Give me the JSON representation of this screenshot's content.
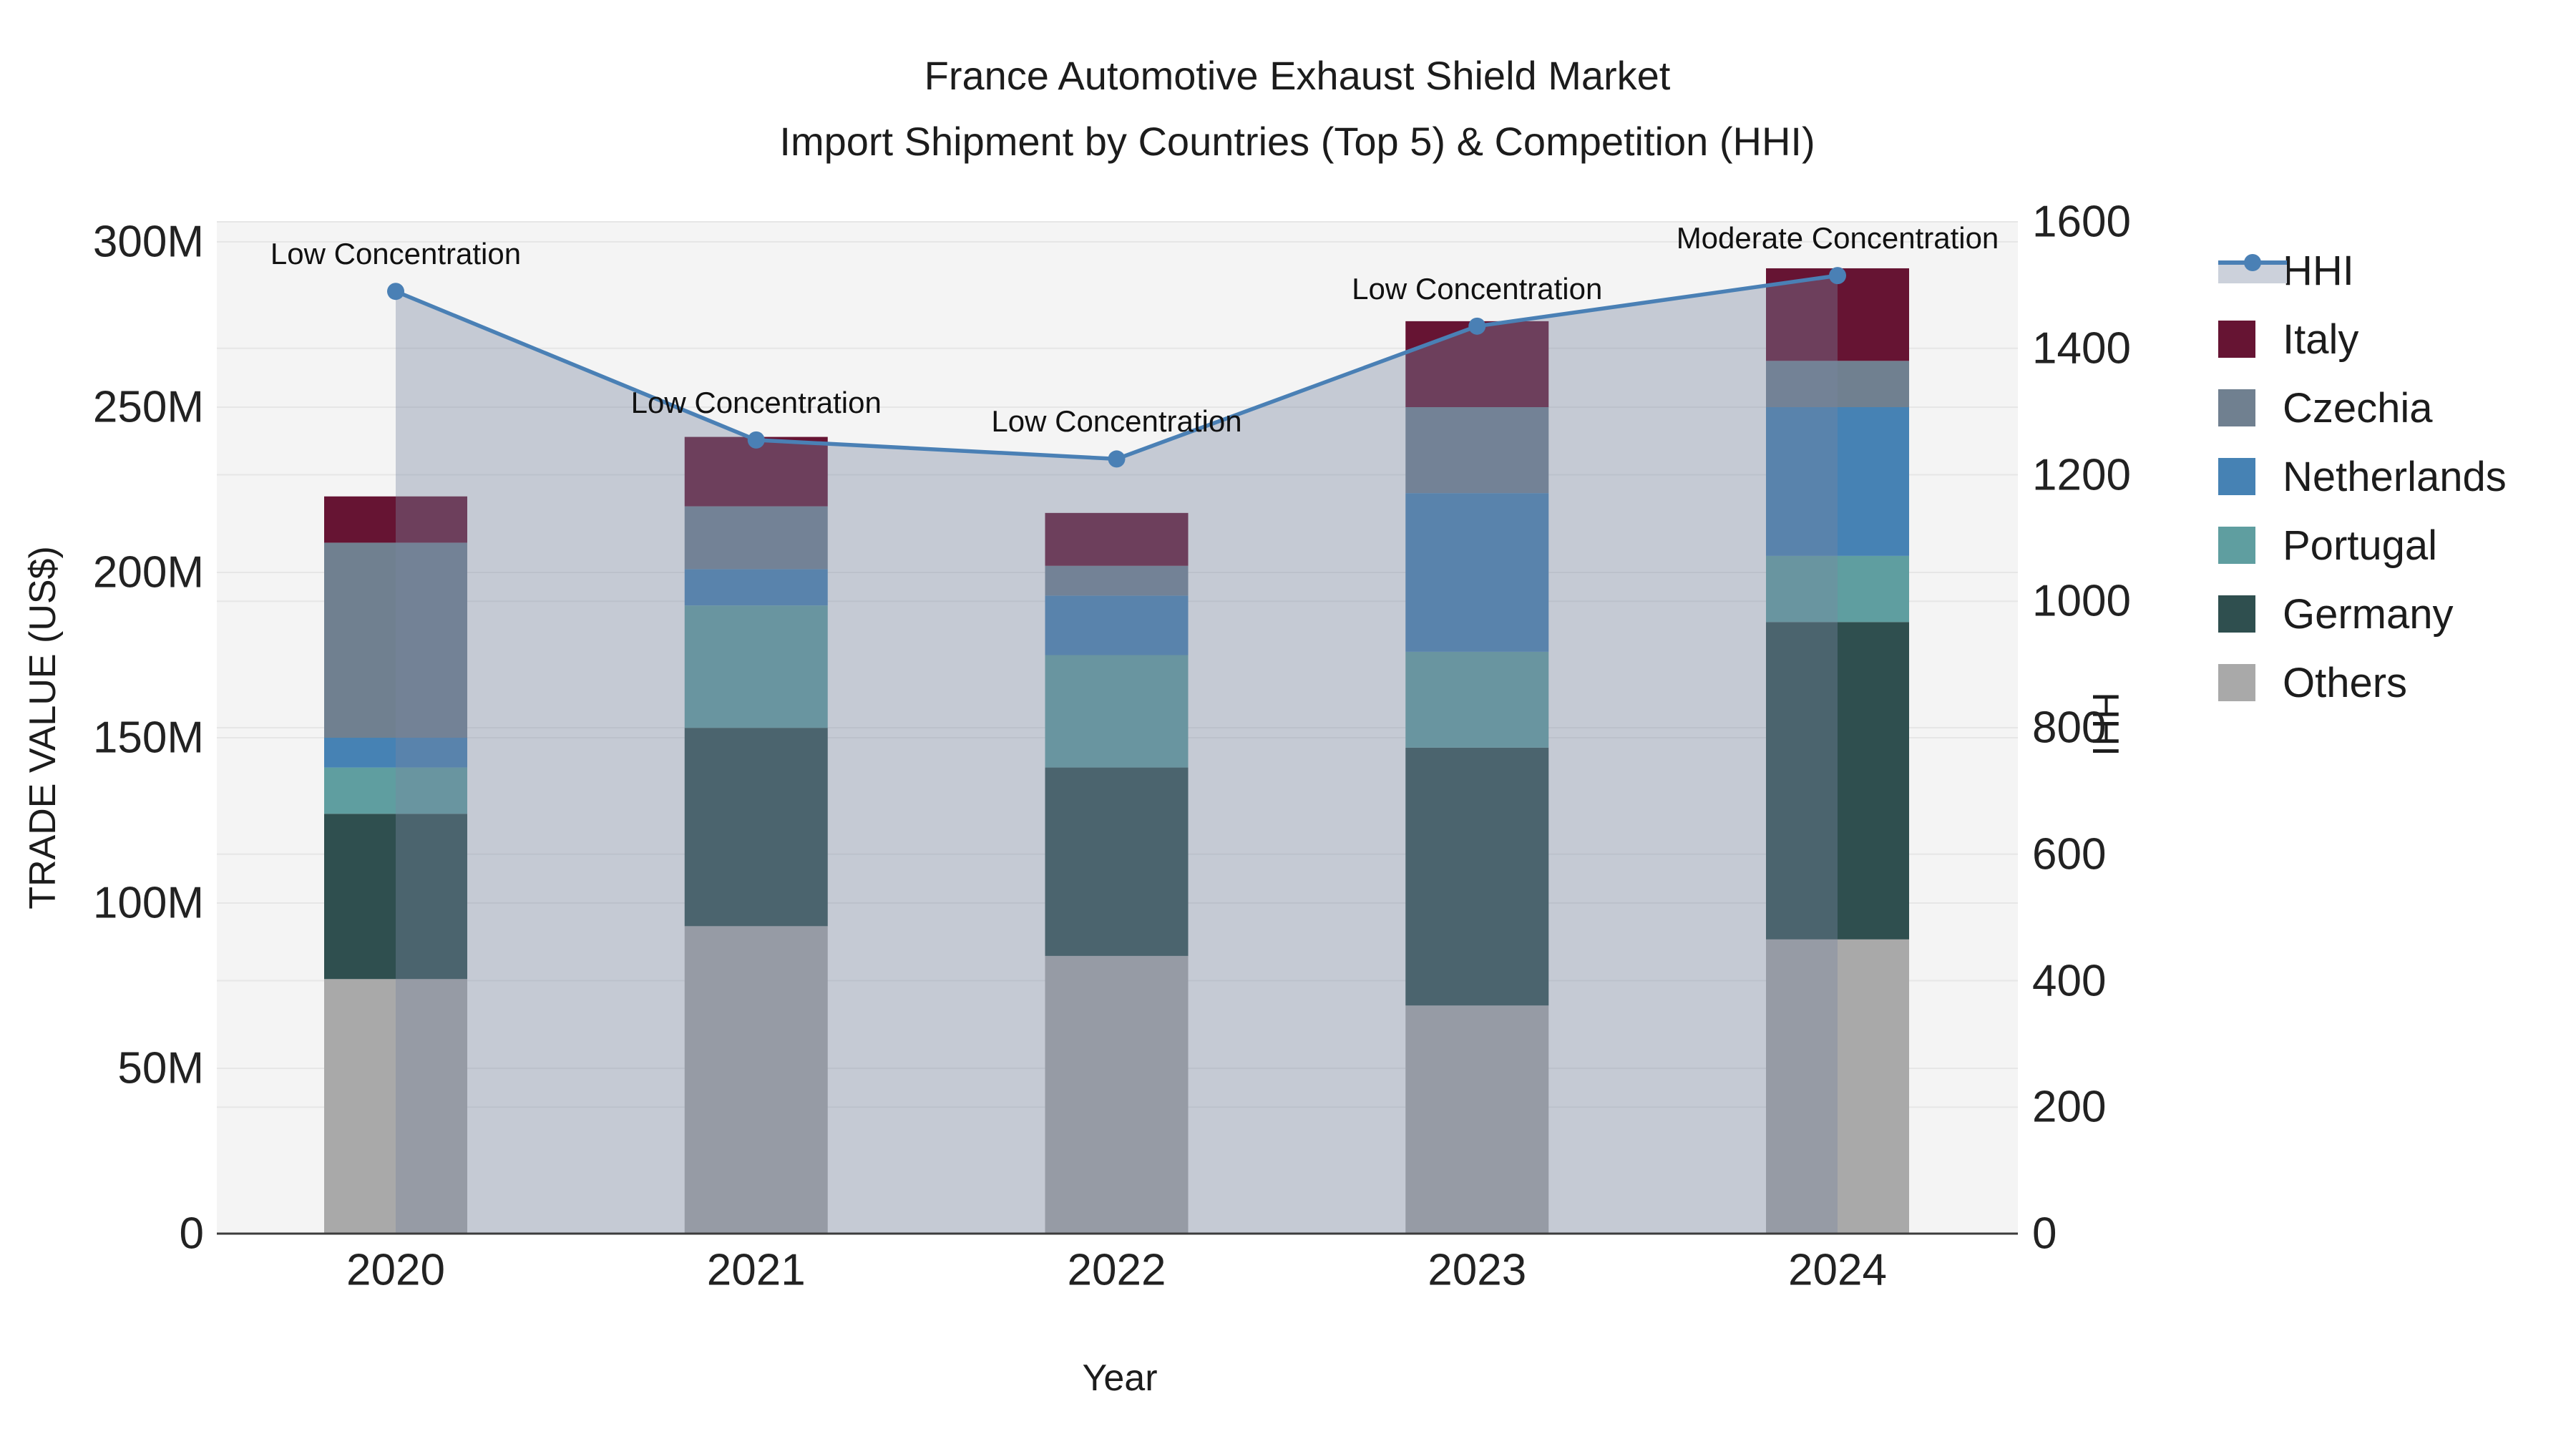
{
  "chart_data": {
    "type": "bar+line",
    "title_line1": "France Automotive Exhaust Shield Market",
    "title_line2": "Import Shipment by Countries (Top 5) & Competition (HHI)",
    "xlabel": "Year",
    "ylabel_left": "TRADE VALUE (US$)",
    "ylabel_right": "HHI",
    "categories": [
      "2020",
      "2021",
      "2022",
      "2023",
      "2024"
    ],
    "value_unit": "US$ millions",
    "series": [
      {
        "name": "Others",
        "color": "#A9A9A9",
        "values": [
          77,
          93,
          84,
          69,
          89
        ]
      },
      {
        "name": "Germany",
        "color": "#2F4F4F",
        "values": [
          50,
          60,
          57,
          78,
          96
        ]
      },
      {
        "name": "Portugal",
        "color": "#5F9EA0",
        "values": [
          14,
          37,
          34,
          29,
          20
        ]
      },
      {
        "name": "Netherlands",
        "color": "#4682B4",
        "values": [
          9,
          11,
          18,
          48,
          45
        ]
      },
      {
        "name": "Czechia",
        "color": "#708090",
        "values": [
          59,
          19,
          9,
          26,
          14
        ]
      },
      {
        "name": "Italy",
        "color": "#661433",
        "values": [
          14,
          21,
          16,
          26,
          28
        ]
      }
    ],
    "bar_totals": [
      223,
      241,
      218,
      276,
      292
    ],
    "hhi": {
      "name": "HHI",
      "values": [
        1490,
        1255,
        1225,
        1435,
        1515
      ],
      "line_color": "#4A80B5",
      "fill_color": "rgba(120,135,160,0.38)"
    },
    "annotations": [
      {
        "year": "2020",
        "text": "Low Concentration"
      },
      {
        "year": "2021",
        "text": "Low Concentration"
      },
      {
        "year": "2022",
        "text": "Low Concentration"
      },
      {
        "year": "2023",
        "text": "Low Concentration"
      },
      {
        "year": "2024",
        "text": "Moderate Concentration"
      }
    ],
    "y_left_ticks": [
      {
        "label": "0",
        "value": 0
      },
      {
        "label": "50M",
        "value": 50
      },
      {
        "label": "100M",
        "value": 100
      },
      {
        "label": "150M",
        "value": 150
      },
      {
        "label": "200M",
        "value": 200
      },
      {
        "label": "250M",
        "value": 250
      },
      {
        "label": "300M",
        "value": 300
      }
    ],
    "y_right_ticks": [
      {
        "label": "0",
        "value": 0
      },
      {
        "label": "200",
        "value": 200
      },
      {
        "label": "400",
        "value": 400
      },
      {
        "label": "600",
        "value": 600
      },
      {
        "label": "800",
        "value": 800
      },
      {
        "label": "1000",
        "value": 1000
      },
      {
        "label": "1200",
        "value": 1200
      },
      {
        "label": "1400",
        "value": 1400
      },
      {
        "label": "1600",
        "value": 1600
      }
    ],
    "y_left_max": 300,
    "y_right_max": 1600,
    "grid_on": true,
    "plot_bg": "#F4F4F4",
    "grid_color": "#E6E6E6",
    "axis_line_color": "#3C3C3C",
    "legend_position": "right"
  },
  "legend": {
    "items": [
      {
        "label": "HHI"
      },
      {
        "label": "Italy",
        "color": "#661433"
      },
      {
        "label": "Czechia",
        "color": "#708090"
      },
      {
        "label": "Netherlands",
        "color": "#4682B4"
      },
      {
        "label": "Portugal",
        "color": "#5F9EA0"
      },
      {
        "label": "Germany",
        "color": "#2F4F4F"
      },
      {
        "label": "Others",
        "color": "#A9A9A9"
      }
    ]
  }
}
